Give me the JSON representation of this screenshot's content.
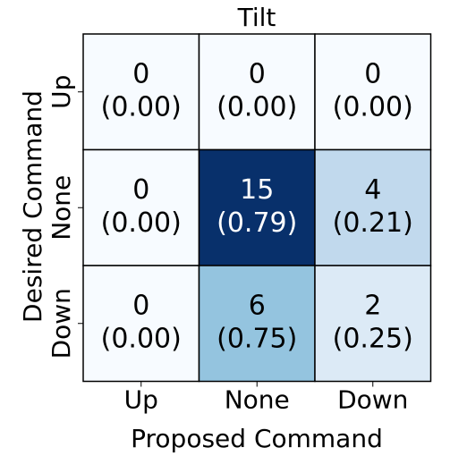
{
  "chart_data": {
    "type": "heatmap",
    "title": "Tilt",
    "x_label": "Proposed Command",
    "y_label": "Desired Command",
    "x_categories": [
      "Up",
      "None",
      "Down"
    ],
    "y_categories": [
      "Up",
      "None",
      "Down"
    ],
    "values": [
      [
        0,
        0,
        0
      ],
      [
        0,
        15,
        4
      ],
      [
        0,
        6,
        2
      ]
    ],
    "fraction_labels": [
      [
        "(0.00)",
        "(0.00)",
        "(0.00)"
      ],
      [
        "(0.00)",
        "(0.79)",
        "(0.21)"
      ],
      [
        "(0.00)",
        "(0.75)",
        "(0.25)"
      ]
    ],
    "colormap": [
      "#f7fbff",
      "#deebf7",
      "#c6dbef",
      "#9ecae1",
      "#6baed6",
      "#4292c6",
      "#2171b5",
      "#08519c",
      "#08306b"
    ],
    "clim": [
      0,
      15
    ]
  }
}
